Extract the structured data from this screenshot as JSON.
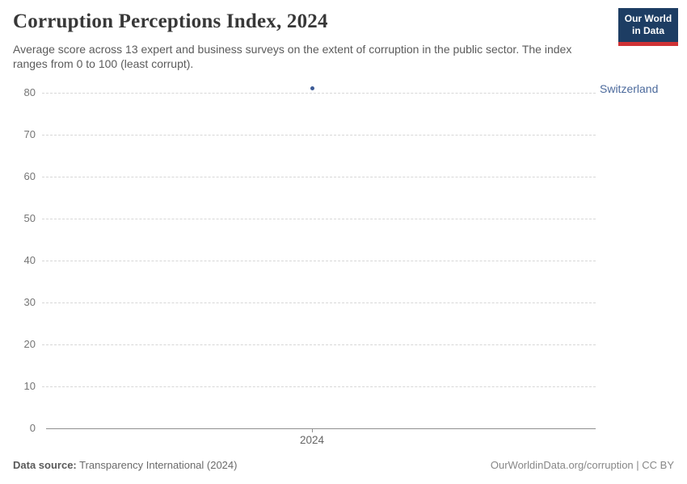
{
  "header": {
    "title": "Corruption Perceptions Index, 2024",
    "subtitle": "Average score across 13 expert and business surveys on the extent of corruption in the public sector. The index ranges from 0 to 100 (least corrupt).",
    "logo": {
      "line1": "Our World",
      "line2": "in Data",
      "bg_color": "#1d3d63",
      "accent_color": "#cf3235",
      "text_color": "#ffffff"
    }
  },
  "chart_data": {
    "type": "scatter",
    "title": "Corruption Perceptions Index, 2024",
    "x": [
      2024
    ],
    "series": [
      {
        "name": "Switzerland",
        "values": [
          81
        ],
        "point_color": "#3c5a96",
        "label_color": "#4c6a9c"
      }
    ],
    "xlabel": "",
    "ylabel": "",
    "ylim": [
      0,
      80
    ],
    "yticks": [
      0,
      10,
      20,
      30,
      40,
      50,
      60,
      70,
      80
    ],
    "xticks": [
      "2024"
    ],
    "grid": "horizontal-dashed",
    "gridline_color": "#d7d7d7",
    "axis_color": "#8f8f8f",
    "legend_position": "entity-label-right-of-plot"
  },
  "footer": {
    "data_source_label": "Data source:",
    "data_source_value": " Transparency International (2024)",
    "credit": "OurWorldinData.org/corruption | CC BY"
  }
}
